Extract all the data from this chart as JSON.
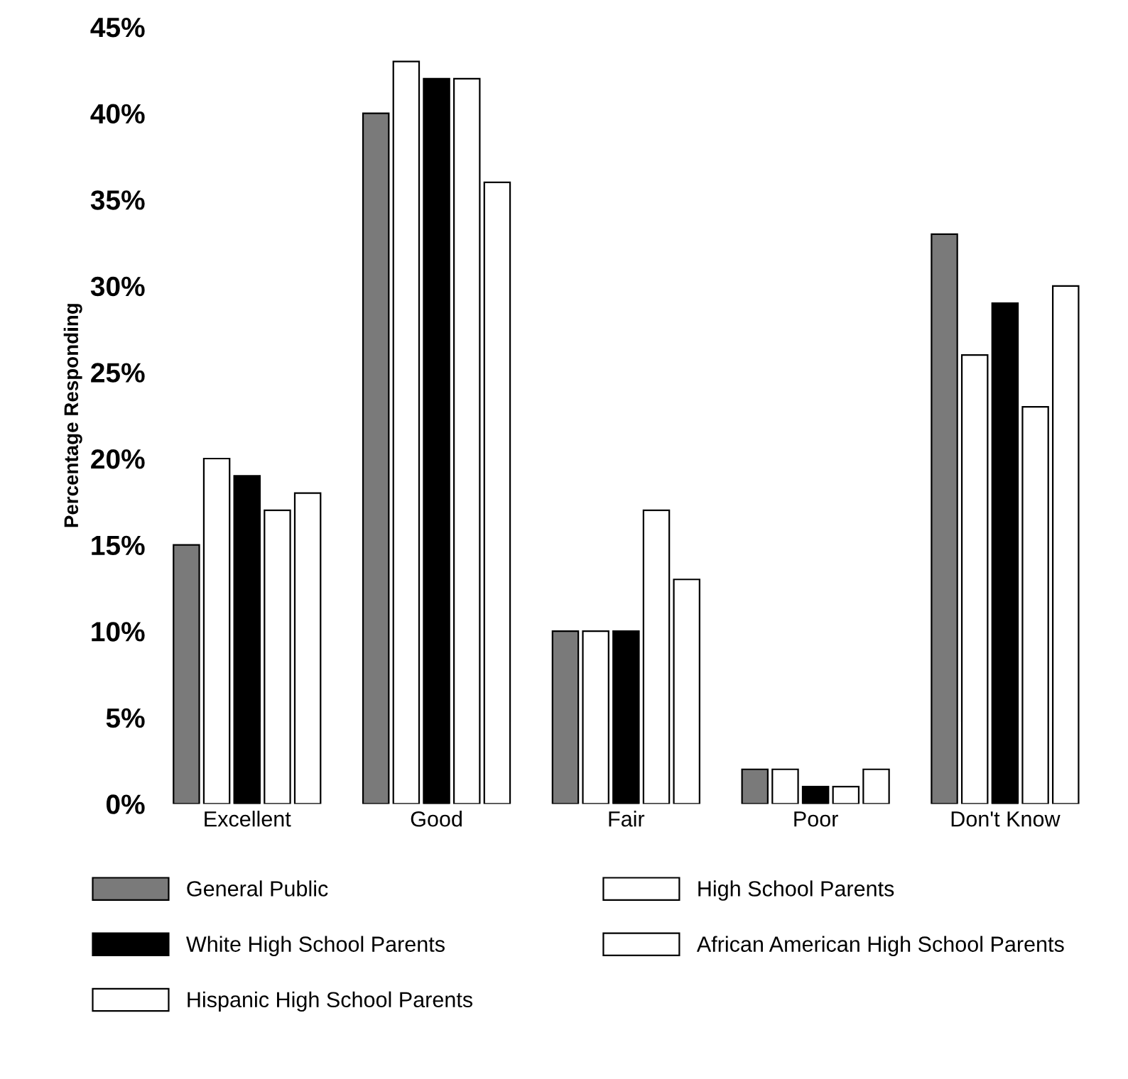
{
  "chart_data": {
    "type": "bar",
    "ylabel": "Percentage Responding",
    "categories": [
      "Excellent",
      "Good",
      "Fair",
      "Poor",
      "Don't Know"
    ],
    "series": [
      {
        "name": "General Public",
        "color": "#7a7a7a",
        "values": [
          15,
          40,
          10,
          2,
          33
        ]
      },
      {
        "name": "High School Parents",
        "color": "#ffffff",
        "values": [
          20,
          43,
          10,
          2,
          26
        ]
      },
      {
        "name": "White High School Parents",
        "color": "#000000",
        "values": [
          19,
          42,
          10,
          1,
          29
        ]
      },
      {
        "name": "African American High School Parents",
        "color": "#ffffff",
        "values": [
          17,
          42,
          17,
          1,
          23
        ]
      },
      {
        "name": "Hispanic High School Parents",
        "color": "#ffffff",
        "values": [
          18,
          36,
          13,
          2,
          30
        ]
      }
    ],
    "ylim": [
      0,
      45
    ],
    "yticks": [
      {
        "value": 0,
        "label": "0%"
      },
      {
        "value": 5,
        "label": "5%"
      },
      {
        "value": 10,
        "label": "10%"
      },
      {
        "value": 15,
        "label": "15%"
      },
      {
        "value": 20,
        "label": "20%"
      },
      {
        "value": 25,
        "label": "25%"
      },
      {
        "value": 30,
        "label": "30%"
      },
      {
        "value": 35,
        "label": "35%"
      },
      {
        "value": 40,
        "label": "40%"
      },
      {
        "value": 45,
        "label": "45%"
      }
    ],
    "grid": false,
    "legend": "bottom"
  }
}
